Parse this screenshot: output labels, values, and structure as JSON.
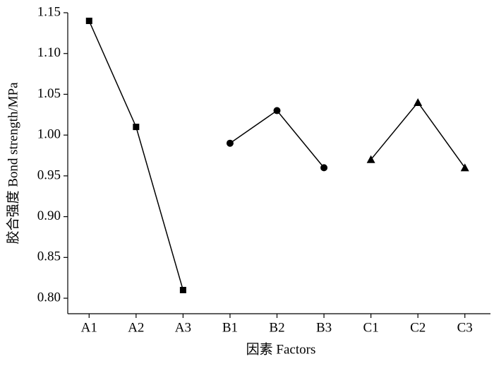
{
  "chart_data": {
    "type": "line",
    "x_label": "因素 Factors",
    "y_label": "胶合强度 Bond strength/MPa",
    "categories": [
      "A1",
      "A2",
      "A3",
      "B1",
      "B2",
      "B3",
      "C1",
      "C2",
      "C3"
    ],
    "series": [
      {
        "color": "#000000",
        "marker": "square",
        "values": [
          1.14,
          1.01,
          0.81,
          null,
          null,
          null,
          null,
          null,
          null
        ]
      },
      {
        "color": "#000000",
        "marker": "circle",
        "values": [
          null,
          null,
          null,
          0.99,
          1.03,
          0.96,
          null,
          null,
          null
        ]
      },
      {
        "color": "#000000",
        "marker": "triangle",
        "values": [
          null,
          null,
          null,
          null,
          null,
          null,
          0.97,
          1.04,
          0.96
        ]
      }
    ],
    "ylim": [
      0.781,
      1.15
    ],
    "yticks": [
      {
        "value": 0.8,
        "label": "0.80"
      },
      0.85,
      {
        "value": 0.9,
        "label": "0.90"
      },
      0.95,
      {
        "value": 1.0,
        "label": "1.00"
      },
      1.05,
      {
        "value": 1.1,
        "label": "1.10"
      },
      1.15
    ],
    "grid": false
  }
}
